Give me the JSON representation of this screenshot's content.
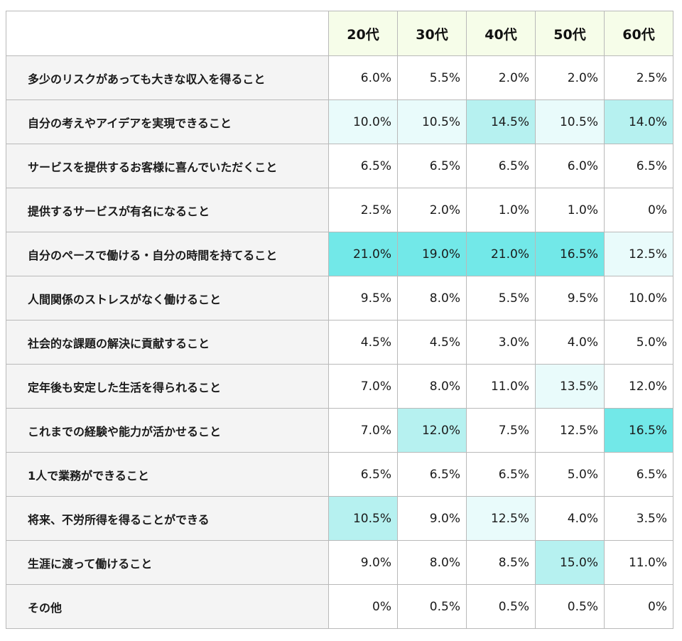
{
  "chart_data": {
    "type": "table",
    "columns": [
      "20代",
      "30代",
      "40代",
      "50代",
      "60代"
    ],
    "rows": [
      {
        "label": "多少のリスクがあっても大きな収入を得ること",
        "values": [
          "6.0%",
          "5.5%",
          "2.0%",
          "2.0%",
          "2.5%"
        ],
        "highlight": [
          0,
          0,
          0,
          0,
          0
        ]
      },
      {
        "label": "自分の考えやアイデアを実現できること",
        "values": [
          "10.0%",
          "10.5%",
          "14.5%",
          "10.5%",
          "14.0%"
        ],
        "highlight": [
          1,
          1,
          2,
          1,
          2
        ]
      },
      {
        "label": "サービスを提供するお客様に喜んでいただくこと",
        "values": [
          "6.5%",
          "6.5%",
          "6.5%",
          "6.0%",
          "6.5%"
        ],
        "highlight": [
          0,
          0,
          0,
          0,
          0
        ]
      },
      {
        "label": "提供するサービスが有名になること",
        "values": [
          "2.5%",
          "2.0%",
          "1.0%",
          "1.0%",
          "0%"
        ],
        "highlight": [
          0,
          0,
          0,
          0,
          0
        ]
      },
      {
        "label": "自分のペースで働ける・自分の時間を持てること",
        "values": [
          "21.0%",
          "19.0%",
          "21.0%",
          "16.5%",
          "12.5%"
        ],
        "highlight": [
          3,
          3,
          3,
          3,
          1
        ]
      },
      {
        "label": "人間関係のストレスがなく働けること",
        "values": [
          "9.5%",
          "8.0%",
          "5.5%",
          "9.5%",
          "10.0%"
        ],
        "highlight": [
          0,
          0,
          0,
          0,
          0
        ]
      },
      {
        "label": "社会的な課題の解決に貢献すること",
        "values": [
          "4.5%",
          "4.5%",
          "3.0%",
          "4.0%",
          "5.0%"
        ],
        "highlight": [
          0,
          0,
          0,
          0,
          0
        ]
      },
      {
        "label": "定年後も安定した生活を得られること",
        "values": [
          "7.0%",
          "8.0%",
          "11.0%",
          "13.5%",
          "12.0%"
        ],
        "highlight": [
          0,
          0,
          0,
          1,
          0
        ]
      },
      {
        "label": "これまでの経験や能力が活かせること",
        "values": [
          "7.0%",
          "12.0%",
          "7.5%",
          "12.5%",
          "16.5%"
        ],
        "highlight": [
          0,
          2,
          0,
          0,
          3
        ]
      },
      {
        "label": "1人で業務ができること",
        "values": [
          "6.5%",
          "6.5%",
          "6.5%",
          "5.0%",
          "6.5%"
        ],
        "highlight": [
          0,
          0,
          0,
          0,
          0
        ]
      },
      {
        "label": "将来、不労所得を得ることができる",
        "values": [
          "10.5%",
          "9.0%",
          "12.5%",
          "4.0%",
          "3.5%"
        ],
        "highlight": [
          2,
          0,
          1,
          0,
          0
        ]
      },
      {
        "label": "生涯に渡って働けること",
        "values": [
          "9.0%",
          "8.0%",
          "8.5%",
          "15.0%",
          "11.0%"
        ],
        "highlight": [
          0,
          0,
          0,
          2,
          0
        ]
      },
      {
        "label": "その他",
        "values": [
          "0%",
          "0.5%",
          "0.5%",
          "0.5%",
          "0%"
        ],
        "highlight": [
          0,
          0,
          0,
          0,
          0
        ]
      }
    ]
  },
  "colors": {
    "header_bg": "#f6fde9",
    "row_label_bg": "#f4f4f4",
    "border": "#b9b9b9",
    "highlight_levels": [
      "#ffffff",
      "#e9fbfb",
      "#b6f1f0",
      "#72e8e8"
    ]
  }
}
